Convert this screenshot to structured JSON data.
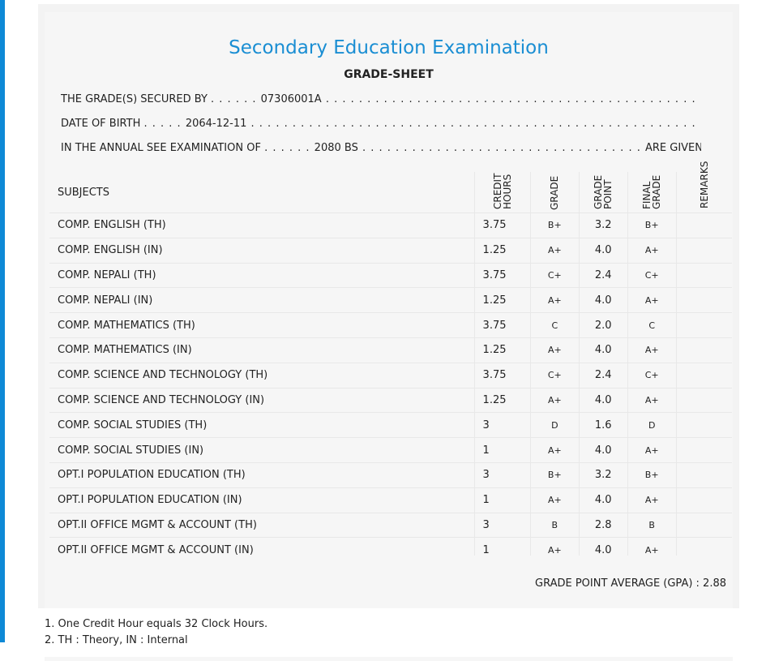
{
  "header": {
    "title": "Secondary Education Examination",
    "subtitle": "GRADE-SHEET"
  },
  "info": {
    "secured_by_label": "THE GRADE(S) SECURED BY",
    "secured_by_value": "07306001A",
    "dob_label": "DATE OF BIRTH",
    "dob_value": "2064-12-11",
    "exam_label": "IN THE ANNUAL SEE EXAMINATION OF",
    "exam_value": "2080 BS",
    "exam_suffix": "ARE GIVEN BELOW . . ."
  },
  "table": {
    "headers": {
      "subjects": "SUBJECTS",
      "credit_hours": "CREDIT\nHOURS",
      "grade": "GRADE",
      "grade_point": "GRADE\nPOINT",
      "final_grade": "FINAL\nGRADE",
      "remarks": "REMARKS"
    },
    "rows": [
      {
        "subject": "COMP. ENGLISH (TH)",
        "credit": "3.75",
        "grade": "B+",
        "gp": "3.2",
        "final": "B+",
        "remarks": ""
      },
      {
        "subject": "COMP. ENGLISH (IN)",
        "credit": "1.25",
        "grade": "A+",
        "gp": "4.0",
        "final": "A+",
        "remarks": ""
      },
      {
        "subject": "COMP. NEPALI (TH)",
        "credit": "3.75",
        "grade": "C+",
        "gp": "2.4",
        "final": "C+",
        "remarks": ""
      },
      {
        "subject": "COMP. NEPALI (IN)",
        "credit": "1.25",
        "grade": "A+",
        "gp": "4.0",
        "final": "A+",
        "remarks": ""
      },
      {
        "subject": "COMP. MATHEMATICS (TH)",
        "credit": "3.75",
        "grade": "C",
        "gp": "2.0",
        "final": "C",
        "remarks": ""
      },
      {
        "subject": "COMP. MATHEMATICS (IN)",
        "credit": "1.25",
        "grade": "A+",
        "gp": "4.0",
        "final": "A+",
        "remarks": ""
      },
      {
        "subject": "COMP. SCIENCE AND TECHNOLOGY (TH)",
        "credit": "3.75",
        "grade": "C+",
        "gp": "2.4",
        "final": "C+",
        "remarks": ""
      },
      {
        "subject": "COMP. SCIENCE AND TECHNOLOGY (IN)",
        "credit": "1.25",
        "grade": "A+",
        "gp": "4.0",
        "final": "A+",
        "remarks": ""
      },
      {
        "subject": "COMP. SOCIAL STUDIES (TH)",
        "credit": "3",
        "grade": "D",
        "gp": "1.6",
        "final": "D",
        "remarks": ""
      },
      {
        "subject": "COMP. SOCIAL STUDIES (IN)",
        "credit": "1",
        "grade": "A+",
        "gp": "4.0",
        "final": "A+",
        "remarks": ""
      },
      {
        "subject": "OPT.I POPULATION EDUCATION (TH)",
        "credit": "3",
        "grade": "B+",
        "gp": "3.2",
        "final": "B+",
        "remarks": ""
      },
      {
        "subject": "OPT.I POPULATION EDUCATION (IN)",
        "credit": "1",
        "grade": "A+",
        "gp": "4.0",
        "final": "A+",
        "remarks": ""
      },
      {
        "subject": "OPT.II OFFICE MGMT & ACCOUNT (TH)",
        "credit": "3",
        "grade": "B",
        "gp": "2.8",
        "final": "B",
        "remarks": ""
      },
      {
        "subject": "OPT.II OFFICE MGMT & ACCOUNT (IN)",
        "credit": "1",
        "grade": "A+",
        "gp": "4.0",
        "final": "A+",
        "remarks": ""
      }
    ]
  },
  "gpa": {
    "text": "GRADE POINT AVERAGE (GPA) : 2.88"
  },
  "notes": [
    "1. One Credit Hour equals 32 Clock Hours.",
    "2. TH : Theory, IN : Internal"
  ],
  "colors": {
    "accent": "#1a8ed3",
    "side_bar": "#0e89d6"
  }
}
